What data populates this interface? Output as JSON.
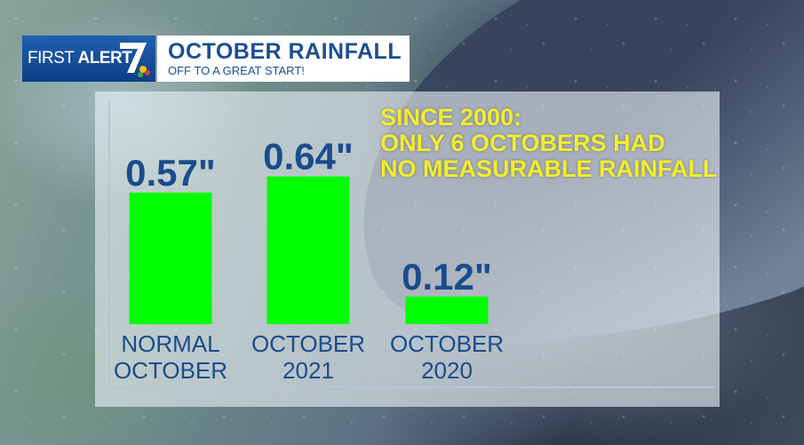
{
  "brand": {
    "first": "FIRST",
    "alert": "ALERT",
    "number": "7"
  },
  "header": {
    "title": "OCTOBER RAINFALL",
    "subtitle": "OFF TO A GREAT START!"
  },
  "note": {
    "lines": [
      "SINCE 2000:",
      "ONLY 6 OCTOBERS HAD",
      "NO MEASURABLE RAINFALL"
    ]
  },
  "colors": {
    "bar": "#00ff00",
    "value_text": "#1a4c8c",
    "note_text": "#f3ee2a",
    "brand_blue": "#1f5fb0"
  },
  "chart_data": {
    "type": "bar",
    "categories": [
      [
        "NORMAL",
        "OCTOBER"
      ],
      [
        "OCTOBER",
        "2021"
      ],
      [
        "OCTOBER",
        "2020"
      ]
    ],
    "values": [
      0.57,
      0.64,
      0.12
    ],
    "value_labels": [
      "0.57\"",
      "0.64\"",
      "0.12\""
    ],
    "title": "OCTOBER RAINFALL",
    "unit": "inches"
  }
}
